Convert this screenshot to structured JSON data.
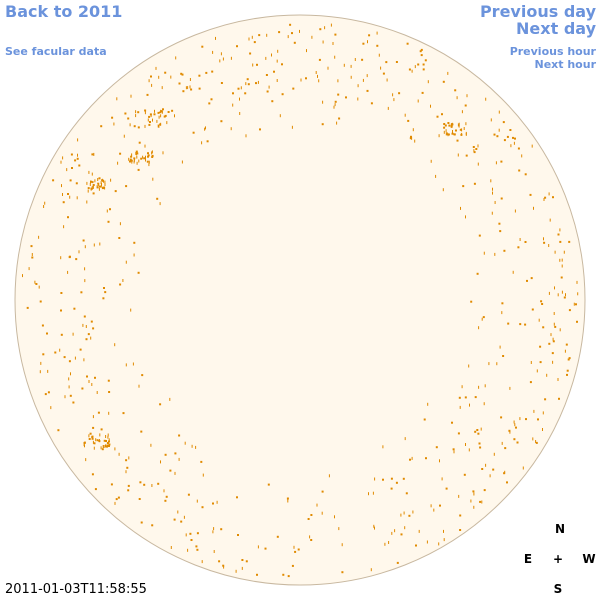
{
  "navigation": {
    "back": "Back to 2011",
    "facular": "See facular data",
    "previous_day": "Previous day",
    "next_day": "Next day",
    "previous_hour": "Previous hour",
    "next_hour": "Next hour"
  },
  "timestamp": "2011-01-03T11:58:55",
  "compass": {
    "north": "N",
    "east": "E",
    "center": "+",
    "west": "W",
    "south": "S"
  }
}
